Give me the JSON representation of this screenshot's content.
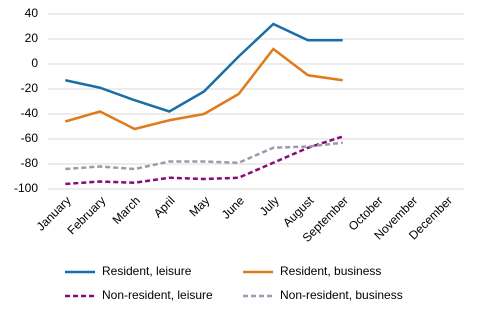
{
  "chart_data": {
    "type": "line",
    "categories": [
      "January",
      "February",
      "March",
      "April",
      "May",
      "June",
      "July",
      "August",
      "September",
      "October",
      "November",
      "December"
    ],
    "series": [
      {
        "name": "Resident, leisure",
        "color": "#1a6ea8",
        "line_style": "solid",
        "values": [
          -13,
          -19,
          -29,
          -38,
          -22,
          6,
          32,
          19,
          19,
          null,
          null,
          null
        ]
      },
      {
        "name": "Resident, business",
        "color": "#e07b1a",
        "line_style": "solid",
        "values": [
          -46,
          -38,
          -52,
          -45,
          -40,
          -24,
          12,
          -9,
          -13,
          null,
          null,
          null
        ]
      },
      {
        "name": "Non-resident, leisure",
        "color": "#8b0a7a",
        "line_style": "dashed",
        "values": [
          -96,
          -94,
          -95,
          -91,
          -92,
          -91,
          -79,
          -67,
          -58,
          null,
          null,
          null
        ]
      },
      {
        "name": "Non-resident, business",
        "color": "#9b9bab",
        "line_style": "dashed",
        "values": [
          -84,
          -82,
          -84,
          -78,
          -78,
          -79,
          -67,
          -66,
          -63,
          null,
          null,
          null
        ]
      }
    ],
    "ylim": [
      -100,
      40
    ],
    "yticks": [
      -100,
      -80,
      -60,
      -40,
      -20,
      0,
      20,
      40
    ],
    "grid": true
  }
}
